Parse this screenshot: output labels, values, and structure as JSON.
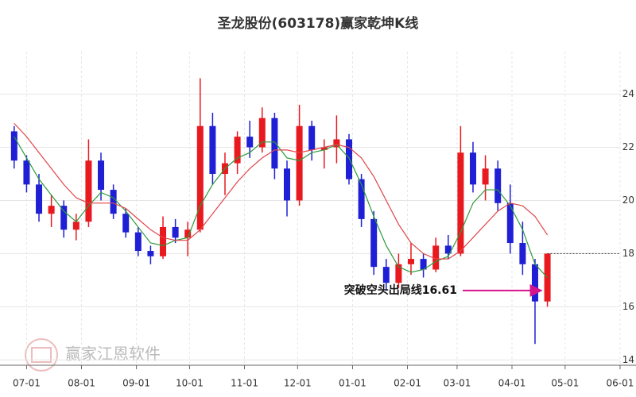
{
  "chart_data": {
    "type": "candlestick",
    "title": "圣龙股份(603178)赢家乾坤K线",
    "watermark": "赢家江恩软件",
    "up_color": "#e8191f",
    "down_color": "#1f1fd6",
    "x": [
      "06-24",
      "07-01",
      "07-08",
      "07-15",
      "07-22",
      "07-29",
      "08-05",
      "08-12",
      "08-19",
      "08-26",
      "09-02",
      "09-09",
      "09-16",
      "09-23",
      "09-30",
      "10-07",
      "10-14",
      "10-21",
      "10-28",
      "11-04",
      "11-11",
      "11-18",
      "11-25",
      "12-02",
      "12-09",
      "12-16",
      "12-23",
      "12-30",
      "01-06",
      "01-13",
      "01-20",
      "01-27",
      "02-03",
      "02-10",
      "02-17",
      "02-24",
      "03-03",
      "03-10",
      "03-17",
      "03-24",
      "03-31",
      "04-07",
      "04-14",
      "04-21"
    ],
    "open": [
      22.6,
      21.5,
      20.6,
      19.5,
      19.8,
      18.9,
      19.2,
      21.5,
      20.4,
      19.5,
      18.8,
      18.1,
      17.9,
      19.0,
      18.6,
      18.9,
      22.8,
      21.0,
      21.4,
      22.4,
      22.0,
      23.1,
      21.2,
      20.0,
      22.8,
      21.9,
      22.0,
      22.3,
      20.8,
      19.3,
      17.5,
      16.9,
      17.6,
      17.8,
      17.4,
      18.3,
      18.0,
      21.8,
      20.6,
      21.2,
      19.9,
      18.4,
      17.6,
      16.2
    ],
    "high": [
      22.8,
      21.7,
      21.0,
      20.2,
      20.0,
      19.5,
      22.3,
      21.8,
      20.6,
      19.7,
      19.0,
      18.3,
      19.4,
      19.3,
      19.2,
      24.6,
      23.3,
      21.8,
      22.6,
      23.0,
      23.5,
      23.3,
      21.5,
      23.6,
      23.0,
      22.3,
      23.2,
      22.5,
      21.0,
      19.6,
      17.8,
      18.0,
      18.4,
      18.0,
      18.6,
      18.7,
      22.8,
      22.2,
      21.7,
      21.5,
      20.6,
      19.2,
      17.8,
      18.0
    ],
    "low": [
      21.2,
      20.3,
      19.2,
      19.0,
      18.6,
      18.5,
      19.0,
      20.0,
      19.3,
      18.6,
      17.9,
      17.6,
      17.8,
      18.4,
      17.9,
      18.8,
      20.6,
      20.2,
      21.0,
      21.6,
      21.8,
      20.8,
      19.4,
      19.8,
      21.5,
      21.2,
      21.4,
      20.6,
      19.0,
      17.2,
      16.6,
      16.7,
      17.2,
      17.1,
      17.3,
      17.8,
      17.9,
      20.3,
      20.0,
      19.6,
      18.0,
      17.2,
      14.6,
      16.0
    ],
    "close": [
      21.5,
      20.6,
      19.5,
      19.8,
      18.9,
      19.2,
      21.5,
      20.4,
      19.5,
      18.8,
      18.1,
      17.9,
      19.0,
      18.6,
      18.9,
      22.8,
      21.0,
      21.4,
      22.4,
      22.0,
      23.1,
      21.2,
      20.0,
      22.8,
      21.9,
      22.0,
      22.3,
      20.8,
      19.3,
      17.5,
      16.9,
      17.6,
      17.8,
      17.4,
      18.3,
      18.0,
      21.8,
      20.6,
      21.2,
      19.9,
      18.4,
      17.6,
      16.2,
      18.0
    ],
    "lines": [
      {
        "color": "#2e9a3a",
        "values": [
          22.4,
          21.6,
          20.8,
          20.2,
          19.6,
          19.2,
          19.8,
          20.3,
          20.1,
          19.6,
          19.0,
          18.4,
          18.3,
          18.5,
          18.6,
          19.8,
          20.6,
          21.2,
          21.6,
          21.8,
          22.2,
          22.2,
          21.6,
          21.5,
          21.8,
          21.9,
          22.1,
          21.6,
          20.6,
          19.4,
          18.3,
          17.5,
          17.3,
          17.4,
          17.7,
          17.9,
          18.8,
          19.9,
          20.4,
          20.4,
          19.8,
          18.9,
          17.6,
          17.1
        ]
      },
      {
        "color": "#e0464a",
        "values": [
          22.9,
          22.4,
          21.8,
          21.2,
          20.6,
          20.1,
          19.9,
          19.9,
          19.9,
          19.7,
          19.3,
          18.9,
          18.6,
          18.5,
          18.5,
          18.9,
          19.5,
          20.1,
          20.7,
          21.2,
          21.6,
          21.9,
          21.9,
          21.8,
          21.9,
          22.0,
          22.1,
          22.0,
          21.6,
          20.9,
          20.0,
          19.1,
          18.4,
          18.0,
          17.8,
          17.8,
          18.1,
          18.6,
          19.1,
          19.6,
          19.9,
          19.8,
          19.4,
          18.7
        ]
      }
    ],
    "annotation": {
      "text": "突破空头出局线16.61",
      "value": 16.61,
      "color": "#d4148c"
    },
    "xlim": [
      "06-16",
      "06-10"
    ],
    "xticks": [
      "07-01",
      "08-01",
      "09-01",
      "10-01",
      "11-01",
      "12-01",
      "01-01",
      "02-01",
      "03-01",
      "04-01",
      "05-01",
      "06-01"
    ],
    "ylim": [
      13.8,
      25.6
    ],
    "yticks": [
      14,
      16,
      18,
      20,
      22,
      24
    ],
    "grid": true
  }
}
